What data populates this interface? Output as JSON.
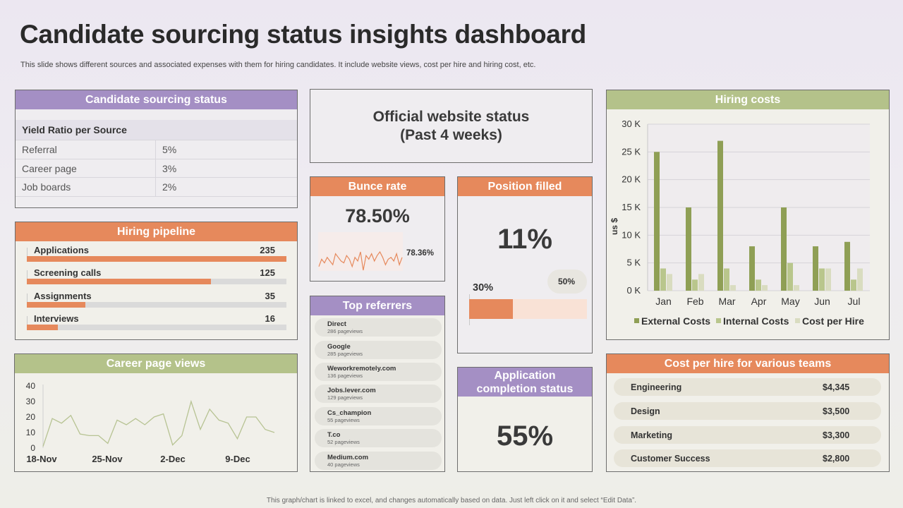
{
  "header": {
    "title": "Candidate sourcing status insights dashboard",
    "subtitle": "This slide shows different sources and associated expenses with them for hiring candidates. It include website views, cost per hire and hiring cost, etc."
  },
  "sourcing": {
    "title": "Candidate sourcing status",
    "table_header": "Yield Ratio per Source",
    "rows": [
      {
        "source": "Referral",
        "ratio": "5%"
      },
      {
        "source": "Career page",
        "ratio": "3%"
      },
      {
        "source": "Job boards",
        "ratio": "2%"
      }
    ]
  },
  "pipeline": {
    "title": "Hiring pipeline",
    "items": [
      {
        "label": "Applications",
        "value": "235",
        "progress": 1.0
      },
      {
        "label": "Screening calls",
        "value": "125",
        "progress": 0.71
      },
      {
        "label": "Assignments",
        "value": "35",
        "progress": 0.225
      },
      {
        "label": "Interviews",
        "value": "16",
        "progress": 0.12
      }
    ]
  },
  "career_views": {
    "title": "Career page views",
    "y_ticks": [
      "40",
      "30",
      "20",
      "10",
      "0"
    ],
    "x_ticks": [
      "18-Nov",
      "25-Nov",
      "2-Dec",
      "9-Dec"
    ]
  },
  "website": {
    "title_line1": "Official website status",
    "title_line2": "(Past 4 weeks)"
  },
  "bounce": {
    "title": "Bunce rate",
    "value": "78.50%",
    "spark_label": "78.36%"
  },
  "position": {
    "title": "Position filled",
    "value": "11%",
    "bar_label": "30%",
    "bubble_label": "50%",
    "bar_fill": 0.37
  },
  "referrers": {
    "title": "Top referrers",
    "items": [
      {
        "name": "Direct",
        "views": "286 pageviews"
      },
      {
        "name": "Google",
        "views": "285 pageviews"
      },
      {
        "name": "Weworkremotely.com",
        "views": "136 pageviews"
      },
      {
        "name": "Jobs.lever.com",
        "views": "129 pageviews"
      },
      {
        "name": "Cs_champion",
        "views": "55 pageviews"
      },
      {
        "name": "T.co",
        "views": "52 pageviews"
      },
      {
        "name": "Medium.com",
        "views": "40 pageviews"
      }
    ]
  },
  "completion": {
    "title_line1": "Application",
    "title_line2": "completion status",
    "value": "55%"
  },
  "hiring_costs": {
    "title": "Hiring costs",
    "y_axis_label": "us $"
  },
  "team_costs": {
    "title": "Cost per hire for various teams",
    "items": [
      {
        "team": "Engineering",
        "cost": "$4,345"
      },
      {
        "team": "Design",
        "cost": "$3,500"
      },
      {
        "team": "Marketing",
        "cost": "$3,300"
      },
      {
        "team": "Customer Success",
        "cost": "$2,800"
      }
    ]
  },
  "footer": {
    "note": "This graph/chart is linked to excel, and changes automatically based on data. Just left click on it and select “Edit Data”."
  },
  "colors": {
    "purple": "#a48fc4",
    "orange": "#e6895c",
    "green": "#b4c28a",
    "series_external": "#8f9f55",
    "series_internal": "#b9c68c",
    "series_costperhire": "#d9dcc0"
  },
  "chart_data": [
    {
      "type": "line",
      "title": "Career page views",
      "x_tick_labels": [
        "18-Nov",
        "25-Nov",
        "2-Dec",
        "9-Dec"
      ],
      "ylim": [
        0,
        40
      ],
      "y_ticks": [
        0,
        10,
        20,
        30,
        40
      ],
      "values": [
        1,
        19,
        16,
        21,
        9,
        8,
        8,
        3,
        18,
        15,
        19,
        15,
        20,
        22,
        2,
        8,
        30,
        12,
        25,
        18,
        16,
        6,
        20,
        20,
        12,
        10
      ]
    },
    {
      "type": "line",
      "title": "Bunce rate sparkline",
      "annotation": "78.36%",
      "values": [
        4,
        8,
        6,
        9,
        7,
        5,
        11,
        9,
        7,
        6,
        10,
        8,
        4,
        9,
        7,
        12,
        2,
        10,
        8,
        11,
        7,
        10,
        12,
        9,
        5,
        8,
        9,
        7,
        11,
        5,
        9
      ]
    },
    {
      "type": "bar",
      "title": "Hiring costs",
      "ylabel": "us $",
      "ylim": [
        0,
        30000
      ],
      "y_tick_labels": [
        "0 K",
        "5 K",
        "10 K",
        "15 K",
        "20 K",
        "25 K",
        "30 K"
      ],
      "categories": [
        "Jan",
        "Feb",
        "Mar",
        "Apr",
        "May",
        "Jun",
        "Jul"
      ],
      "series": [
        {
          "name": "External Costs",
          "values": [
            25000,
            15000,
            27000,
            8000,
            15000,
            8000,
            8800
          ]
        },
        {
          "name": "Internal Costs",
          "values": [
            4000,
            2000,
            4000,
            2000,
            5000,
            4000,
            2000
          ]
        },
        {
          "name": "Cost per Hire",
          "values": [
            3000,
            3000,
            1000,
            1000,
            1000,
            4000,
            4000
          ]
        }
      ],
      "legend": "bottom"
    }
  ]
}
